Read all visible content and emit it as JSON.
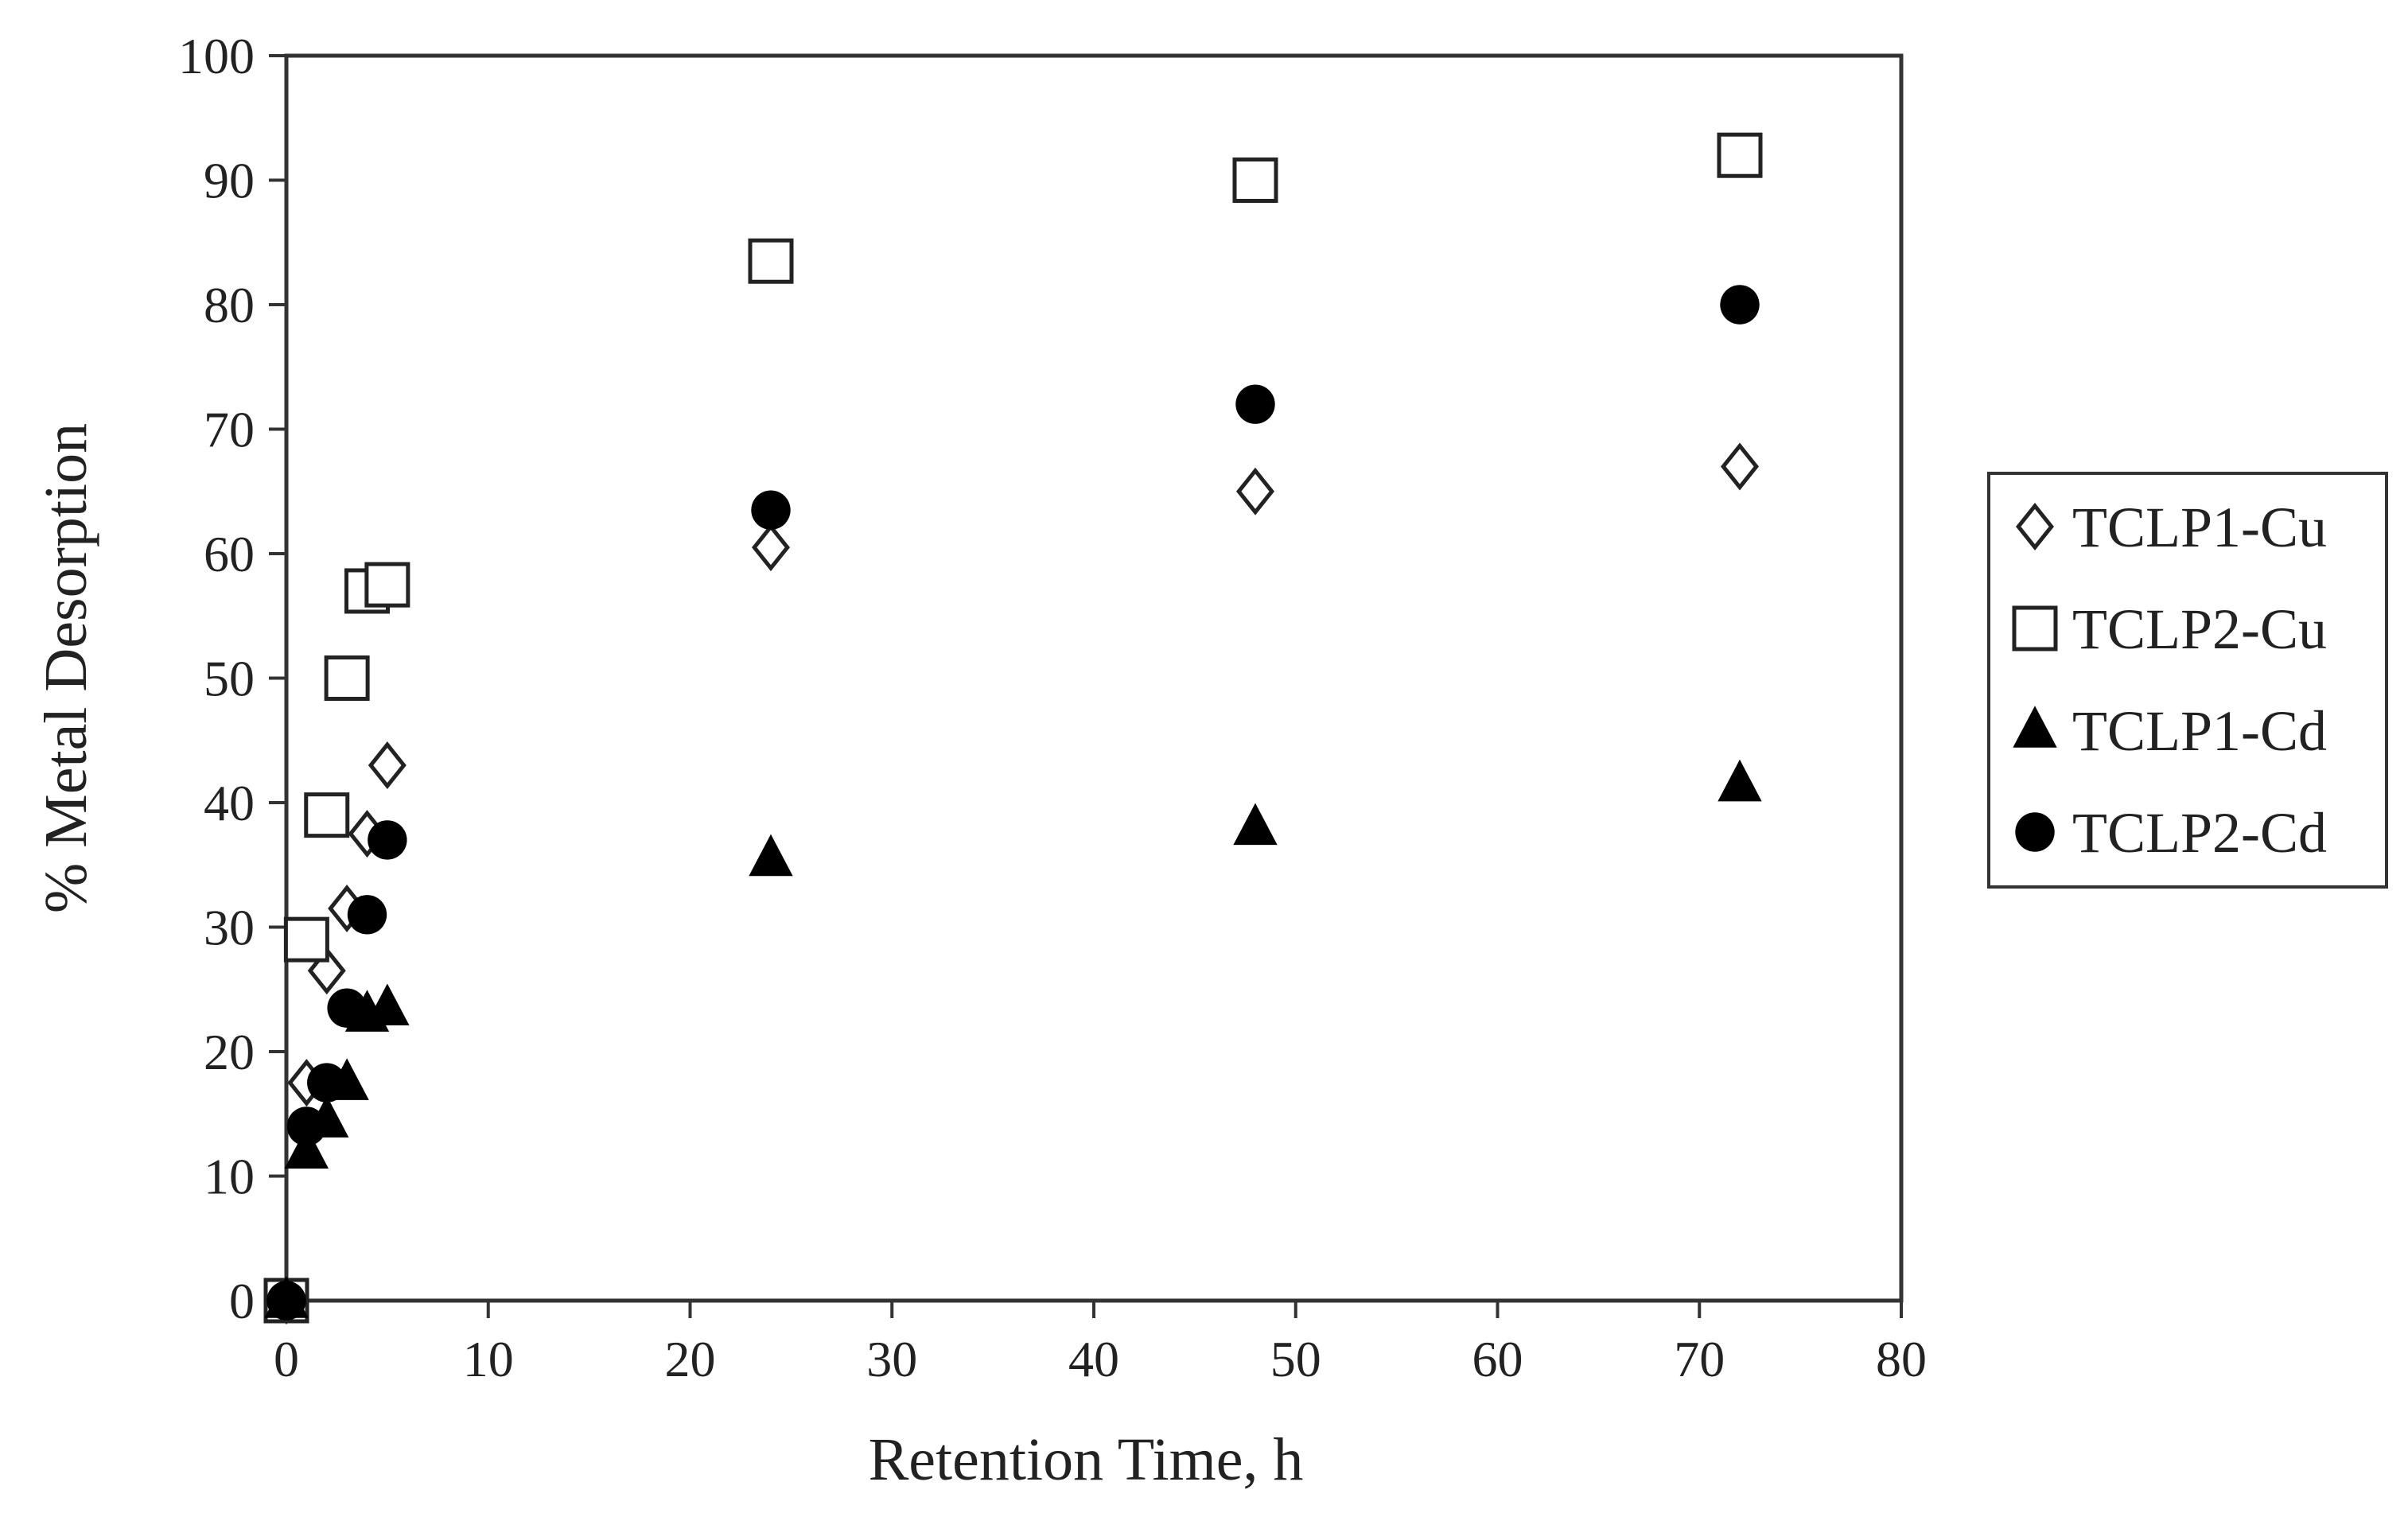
{
  "chart_data": {
    "type": "scatter",
    "title": "",
    "xlabel": "Retention Time, h",
    "ylabel": "% Metal Desorption",
    "xlim": [
      0,
      80
    ],
    "ylim": [
      0,
      100
    ],
    "xticks": [
      0,
      10,
      20,
      30,
      40,
      50,
      60,
      70,
      80
    ],
    "yticks": [
      0,
      10,
      20,
      30,
      40,
      50,
      60,
      70,
      80,
      90,
      100
    ],
    "grid": false,
    "legend_position": "right",
    "series": [
      {
        "name": "TCLP1-Cu",
        "marker": "diamond-open",
        "color": "#222222",
        "points": [
          [
            0,
            0
          ],
          [
            1,
            17.5
          ],
          [
            2,
            26.5
          ],
          [
            3,
            31.5
          ],
          [
            4,
            37.5
          ],
          [
            5,
            43
          ],
          [
            24,
            60.5
          ],
          [
            48,
            65
          ],
          [
            72,
            67
          ]
        ]
      },
      {
        "name": "TCLP2-Cu",
        "marker": "square-open",
        "color": "#222222",
        "points": [
          [
            0,
            0
          ],
          [
            1,
            29
          ],
          [
            2,
            39
          ],
          [
            3,
            50
          ],
          [
            4,
            57
          ],
          [
            5,
            57.5
          ],
          [
            24,
            83.5
          ],
          [
            48,
            90
          ],
          [
            72,
            92
          ]
        ]
      },
      {
        "name": "TCLP1-Cd",
        "marker": "triangle-filled",
        "color": "#000000",
        "points": [
          [
            0,
            0
          ],
          [
            1,
            12
          ],
          [
            2,
            14.5
          ],
          [
            3,
            17.5
          ],
          [
            4,
            23
          ],
          [
            5,
            23.5
          ],
          [
            24,
            35.5
          ],
          [
            48,
            38
          ],
          [
            72,
            41.5
          ]
        ]
      },
      {
        "name": "TCLP2-Cd",
        "marker": "circle-filled",
        "color": "#000000",
        "points": [
          [
            0,
            0
          ],
          [
            1,
            14
          ],
          [
            2,
            17.5
          ],
          [
            3,
            23.5
          ],
          [
            4,
            31
          ],
          [
            5,
            37
          ],
          [
            24,
            63.5
          ],
          [
            48,
            72
          ],
          [
            72,
            80
          ]
        ]
      }
    ]
  }
}
